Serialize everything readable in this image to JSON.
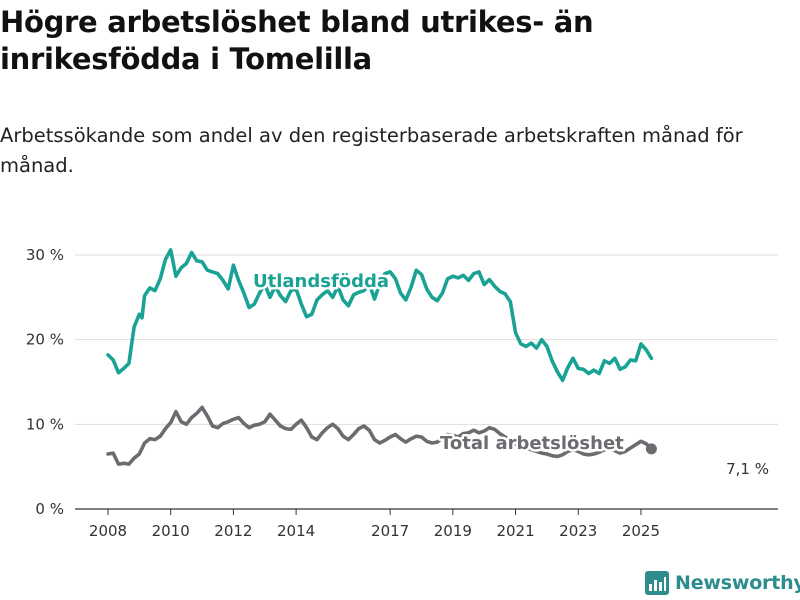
{
  "title": "Högre arbetslöshet bland utrikes- än inrikesfödda i Tomelilla",
  "subtitle": "Arbetssökande som andel av den registerbaserade arbetskraften månad för månad.",
  "brand": {
    "name": "Newsworthy",
    "icon": "newsworthy-logo-icon"
  },
  "colors": {
    "foreign_born": "#1aa294",
    "total": "#6b6b70",
    "grid": "#dddddd",
    "axis": "#333333",
    "brand": "#2d8c8c"
  },
  "chart_data": {
    "type": "line",
    "ylim": [
      0,
      30
    ],
    "y_ticks": [
      0,
      10,
      20,
      30
    ],
    "y_tick_labels": [
      "0 %",
      "10 %",
      "20 %",
      "30 %"
    ],
    "x_range": [
      "2007-11",
      "2026-02"
    ],
    "x_ticks": [
      "2008-01",
      "2010-01",
      "2012-01",
      "2014-01",
      "2017-01",
      "2019-01",
      "2021-01",
      "2023-01",
      "2025-01"
    ],
    "x_tick_labels": [
      "2008",
      "2010",
      "2012",
      "2014",
      "2017",
      "2019",
      "2021",
      "2023",
      "2025"
    ],
    "grid": "horizontal",
    "end_label": "7,1 %",
    "series": [
      {
        "name": "Utlandsfödda",
        "color": "#1aa294",
        "points": [
          [
            "2008-01",
            18.2
          ],
          [
            "2008-03",
            17.6
          ],
          [
            "2008-05",
            16.1
          ],
          [
            "2008-07",
            16.6
          ],
          [
            "2008-09",
            17.2
          ],
          [
            "2008-11",
            21.5
          ],
          [
            "2009-01",
            23.0
          ],
          [
            "2009-02",
            22.6
          ],
          [
            "2009-03",
            25.2
          ],
          [
            "2009-05",
            26.1
          ],
          [
            "2009-07",
            25.8
          ],
          [
            "2009-09",
            27.2
          ],
          [
            "2009-11",
            29.5
          ],
          [
            "2010-01",
            30.6
          ],
          [
            "2010-03",
            27.5
          ],
          [
            "2010-05",
            28.5
          ],
          [
            "2010-07",
            29.0
          ],
          [
            "2010-09",
            30.3
          ],
          [
            "2010-11",
            29.3
          ],
          [
            "2011-01",
            29.2
          ],
          [
            "2011-03",
            28.2
          ],
          [
            "2011-05",
            28.0
          ],
          [
            "2011-07",
            27.8
          ],
          [
            "2011-09",
            27.0
          ],
          [
            "2011-11",
            26.0
          ],
          [
            "2012-01",
            28.8
          ],
          [
            "2012-03",
            27.0
          ],
          [
            "2012-05",
            25.5
          ],
          [
            "2012-07",
            23.8
          ],
          [
            "2012-09",
            24.2
          ],
          [
            "2012-11",
            25.5
          ],
          [
            "2013-01",
            26.5
          ],
          [
            "2013-03",
            25.0
          ],
          [
            "2013-05",
            26.3
          ],
          [
            "2013-07",
            25.2
          ],
          [
            "2013-09",
            24.5
          ],
          [
            "2013-11",
            25.8
          ],
          [
            "2014-01",
            26.0
          ],
          [
            "2014-03",
            24.2
          ],
          [
            "2014-05",
            22.7
          ],
          [
            "2014-07",
            23.0
          ],
          [
            "2014-09",
            24.7
          ],
          [
            "2014-11",
            25.3
          ],
          [
            "2015-01",
            25.8
          ],
          [
            "2015-03",
            25.0
          ],
          [
            "2015-05",
            26.3
          ],
          [
            "2015-07",
            24.7
          ],
          [
            "2015-09",
            24.0
          ],
          [
            "2015-11",
            25.3
          ],
          [
            "2016-01",
            25.6
          ],
          [
            "2016-03",
            25.8
          ],
          [
            "2016-05",
            26.6
          ],
          [
            "2016-07",
            24.8
          ],
          [
            "2016-09",
            26.6
          ],
          [
            "2016-11",
            27.8
          ],
          [
            "2017-01",
            28.0
          ],
          [
            "2017-03",
            27.2
          ],
          [
            "2017-05",
            25.5
          ],
          [
            "2017-07",
            24.7
          ],
          [
            "2017-09",
            26.2
          ],
          [
            "2017-11",
            28.2
          ],
          [
            "2018-01",
            27.7
          ],
          [
            "2018-03",
            26.0
          ],
          [
            "2018-05",
            25.0
          ],
          [
            "2018-07",
            24.6
          ],
          [
            "2018-09",
            25.5
          ],
          [
            "2018-11",
            27.2
          ],
          [
            "2019-01",
            27.5
          ],
          [
            "2019-03",
            27.3
          ],
          [
            "2019-05",
            27.6
          ],
          [
            "2019-07",
            27.0
          ],
          [
            "2019-09",
            27.8
          ],
          [
            "2019-11",
            28.0
          ],
          [
            "2020-01",
            26.5
          ],
          [
            "2020-03",
            27.1
          ],
          [
            "2020-05",
            26.3
          ],
          [
            "2020-07",
            25.7
          ],
          [
            "2020-09",
            25.4
          ],
          [
            "2020-11",
            24.5
          ],
          [
            "2021-01",
            20.8
          ],
          [
            "2021-03",
            19.5
          ],
          [
            "2021-05",
            19.2
          ],
          [
            "2021-07",
            19.6
          ],
          [
            "2021-09",
            19.0
          ],
          [
            "2021-11",
            20.0
          ],
          [
            "2022-01",
            19.2
          ],
          [
            "2022-03",
            17.5
          ],
          [
            "2022-05",
            16.2
          ],
          [
            "2022-07",
            15.2
          ],
          [
            "2022-09",
            16.7
          ],
          [
            "2022-11",
            17.8
          ],
          [
            "2023-01",
            16.6
          ],
          [
            "2023-03",
            16.5
          ],
          [
            "2023-05",
            16.0
          ],
          [
            "2023-07",
            16.4
          ],
          [
            "2023-09",
            16.0
          ],
          [
            "2023-11",
            17.5
          ],
          [
            "2024-01",
            17.2
          ],
          [
            "2024-03",
            17.8
          ],
          [
            "2024-05",
            16.5
          ],
          [
            "2024-07",
            16.8
          ],
          [
            "2024-09",
            17.6
          ],
          [
            "2024-11",
            17.5
          ],
          [
            "2025-01",
            19.5
          ],
          [
            "2025-03",
            18.8
          ],
          [
            "2025-05",
            17.8
          ]
        ]
      },
      {
        "name": "Total arbetslöshet",
        "color": "#6b6b70",
        "points": [
          [
            "2008-01",
            6.5
          ],
          [
            "2008-03",
            6.6
          ],
          [
            "2008-05",
            5.3
          ],
          [
            "2008-07",
            5.4
          ],
          [
            "2008-09",
            5.3
          ],
          [
            "2008-11",
            6.0
          ],
          [
            "2009-01",
            6.5
          ],
          [
            "2009-03",
            7.8
          ],
          [
            "2009-05",
            8.3
          ],
          [
            "2009-07",
            8.2
          ],
          [
            "2009-09",
            8.6
          ],
          [
            "2009-11",
            9.5
          ],
          [
            "2010-01",
            10.2
          ],
          [
            "2010-03",
            11.5
          ],
          [
            "2010-05",
            10.3
          ],
          [
            "2010-07",
            10.0
          ],
          [
            "2010-09",
            10.8
          ],
          [
            "2010-11",
            11.3
          ],
          [
            "2011-01",
            12.0
          ],
          [
            "2011-03",
            11.0
          ],
          [
            "2011-05",
            9.8
          ],
          [
            "2011-07",
            9.6
          ],
          [
            "2011-09",
            10.1
          ],
          [
            "2011-11",
            10.3
          ],
          [
            "2012-01",
            10.6
          ],
          [
            "2012-03",
            10.8
          ],
          [
            "2012-05",
            10.1
          ],
          [
            "2012-07",
            9.6
          ],
          [
            "2012-09",
            9.9
          ],
          [
            "2012-11",
            10.0
          ],
          [
            "2013-01",
            10.3
          ],
          [
            "2013-03",
            11.2
          ],
          [
            "2013-05",
            10.5
          ],
          [
            "2013-07",
            9.8
          ],
          [
            "2013-09",
            9.5
          ],
          [
            "2013-11",
            9.4
          ],
          [
            "2014-01",
            10.0
          ],
          [
            "2014-03",
            10.5
          ],
          [
            "2014-05",
            9.6
          ],
          [
            "2014-07",
            8.5
          ],
          [
            "2014-09",
            8.2
          ],
          [
            "2014-11",
            9.0
          ],
          [
            "2015-01",
            9.6
          ],
          [
            "2015-03",
            10.0
          ],
          [
            "2015-05",
            9.5
          ],
          [
            "2015-07",
            8.6
          ],
          [
            "2015-09",
            8.2
          ],
          [
            "2015-11",
            8.8
          ],
          [
            "2016-01",
            9.5
          ],
          [
            "2016-03",
            9.8
          ],
          [
            "2016-05",
            9.3
          ],
          [
            "2016-07",
            8.2
          ],
          [
            "2016-09",
            7.8
          ],
          [
            "2016-11",
            8.1
          ],
          [
            "2017-01",
            8.5
          ],
          [
            "2017-03",
            8.8
          ],
          [
            "2017-05",
            8.3
          ],
          [
            "2017-07",
            7.9
          ],
          [
            "2017-09",
            8.3
          ],
          [
            "2017-11",
            8.6
          ],
          [
            "2018-01",
            8.5
          ],
          [
            "2018-03",
            8.0
          ],
          [
            "2018-05",
            7.8
          ],
          [
            "2018-07",
            7.9
          ],
          [
            "2018-09",
            8.4
          ],
          [
            "2018-11",
            8.8
          ],
          [
            "2019-01",
            8.7
          ],
          [
            "2019-03",
            8.5
          ],
          [
            "2019-05",
            8.9
          ],
          [
            "2019-07",
            9.0
          ],
          [
            "2019-09",
            9.3
          ],
          [
            "2019-11",
            9.0
          ],
          [
            "2020-01",
            9.2
          ],
          [
            "2020-03",
            9.6
          ],
          [
            "2020-05",
            9.4
          ],
          [
            "2020-07",
            8.9
          ],
          [
            "2020-09",
            8.5
          ],
          [
            "2020-11",
            8.1
          ],
          [
            "2021-01",
            7.6
          ],
          [
            "2021-03",
            7.4
          ],
          [
            "2021-05",
            7.2
          ],
          [
            "2021-07",
            7.0
          ],
          [
            "2021-09",
            6.8
          ],
          [
            "2021-11",
            6.6
          ],
          [
            "2022-01",
            6.5
          ],
          [
            "2022-03",
            6.3
          ],
          [
            "2022-05",
            6.2
          ],
          [
            "2022-07",
            6.4
          ],
          [
            "2022-09",
            6.8
          ],
          [
            "2022-11",
            7.0
          ],
          [
            "2023-01",
            6.8
          ],
          [
            "2023-03",
            6.5
          ],
          [
            "2023-05",
            6.4
          ],
          [
            "2023-07",
            6.5
          ],
          [
            "2023-09",
            6.7
          ],
          [
            "2023-11",
            7.0
          ],
          [
            "2024-01",
            7.1
          ],
          [
            "2024-03",
            6.9
          ],
          [
            "2024-05",
            6.6
          ],
          [
            "2024-07",
            6.8
          ],
          [
            "2024-09",
            7.2
          ],
          [
            "2024-11",
            7.6
          ],
          [
            "2025-01",
            8.0
          ],
          [
            "2025-03",
            7.7
          ],
          [
            "2025-05",
            7.1
          ]
        ]
      }
    ]
  }
}
